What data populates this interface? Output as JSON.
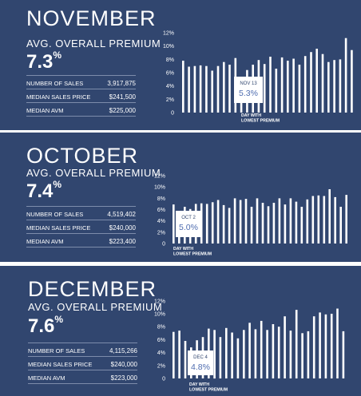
{
  "panels": [
    {
      "month": "NOVEMBER",
      "subtitle": "AVG. OVERALL PREMIUM",
      "premium_value": "7.3",
      "premium_unit": "%",
      "stats": [
        {
          "label": "NUMBER OF SALES",
          "value": "3,917,875"
        },
        {
          "label": "MEDIAN SALES PRICE",
          "value": "$241,500"
        },
        {
          "label": "MEDIAN AVM",
          "value": "$225,000"
        }
      ]
    },
    {
      "month": "OCTOBER",
      "subtitle": "AVG. OVERALL PREMIUM",
      "premium_value": "7.4",
      "premium_unit": "%",
      "stats": [
        {
          "label": "NUMBER OF SALES",
          "value": "4,519,402"
        },
        {
          "label": "MEDIAN SALES PRICE",
          "value": "$240,000"
        },
        {
          "label": "MEDIAN AVM",
          "value": "$223,400"
        }
      ]
    },
    {
      "month": "DECEMBER",
      "subtitle": "AVG. OVERALL PREMIUM",
      "premium_value": "7.6",
      "premium_unit": "%",
      "stats": [
        {
          "label": "NUMBER OF SALES",
          "value": "4,115,266"
        },
        {
          "label": "MEDIAN SALES PRICE",
          "value": "$240,000"
        },
        {
          "label": "MEDIAN AVM",
          "value": "$223,000"
        }
      ]
    }
  ],
  "chart_data": [
    {
      "type": "bar",
      "yticks": [
        "12%",
        "10%",
        "8%",
        "6%",
        "4%",
        "2%",
        "0"
      ],
      "ylim": [
        0,
        12
      ],
      "values": [
        7.8,
        6.9,
        7.0,
        7.1,
        7.0,
        6.3,
        7.0,
        7.6,
        7.2,
        8.2,
        5.3,
        6.4,
        7.2,
        7.9,
        7.3,
        8.4,
        6.6,
        8.3,
        7.8,
        8.1,
        7.2,
        8.5,
        9.1,
        9.6,
        8.8,
        7.6,
        7.9,
        8.0,
        11.2,
        9.4
      ],
      "min_index": 10,
      "callout_date": "NOV 13",
      "callout_value": "5.3%",
      "annotation": [
        "DAY WITH",
        "LOWEST PREMIUM"
      ],
      "bar_color": "#ffffff"
    },
    {
      "type": "bar",
      "yticks": [
        "12%",
        "10%",
        "8%",
        "6%",
        "4%",
        "2%",
        "0"
      ],
      "ylim": [
        0,
        12
      ],
      "values": [
        6.9,
        5.0,
        6.5,
        6.1,
        7.0,
        7.1,
        7.0,
        7.3,
        7.7,
        6.8,
        6.3,
        8.0,
        7.7,
        7.9,
        6.5,
        8.0,
        7.2,
        6.6,
        7.2,
        8.0,
        6.9,
        8.0,
        7.4,
        6.5,
        7.8,
        8.4,
        8.5,
        8.4,
        9.6,
        8.2,
        6.5,
        8.6
      ],
      "min_index": 1,
      "callout_date": "OCT 2",
      "callout_value": "5.0%",
      "annotation": [
        "DAY WITH",
        "LOWEST PREMIUM"
      ],
      "bar_color": "#ffffff"
    },
    {
      "type": "bar",
      "yticks": [
        "12%",
        "10%",
        "8%",
        "6%",
        "4%",
        "2%",
        "0"
      ],
      "ylim": [
        0,
        12
      ],
      "values": [
        7.2,
        7.4,
        5.8,
        4.8,
        5.9,
        6.4,
        7.7,
        7.5,
        6.4,
        7.8,
        7.1,
        6.2,
        7.5,
        8.6,
        7.6,
        8.9,
        7.5,
        8.4,
        8.0,
        9.6,
        7.4,
        10.6,
        7.0,
        7.3,
        9.6,
        10.2,
        9.9,
        10.0,
        10.8,
        7.3
      ],
      "min_index": 3,
      "callout_date": "DEC 4",
      "callout_value": "4.8%",
      "annotation": [
        "DAY WITH",
        "LOWEST PREMIUM"
      ],
      "bar_color": "#ffffff"
    }
  ]
}
